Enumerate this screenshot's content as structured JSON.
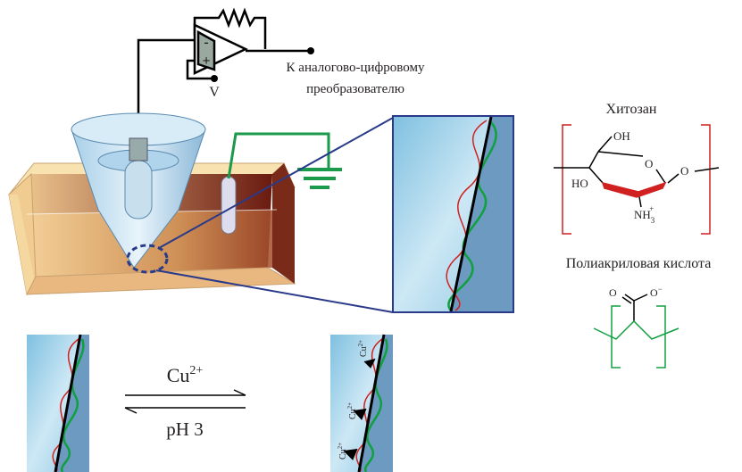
{
  "circuit": {
    "voltage": "V",
    "adc_line1": "К аналогово-цифровому",
    "adc_line2": "преобразователю",
    "minus": "-",
    "plus": "+"
  },
  "chitosan": {
    "title": "Хитозан",
    "oh": "OH",
    "ring_o": "O",
    "link_o": "O",
    "ho": "HO",
    "nh": {
      "base": "NH",
      "sub": "3",
      "sup": "+"
    }
  },
  "polyacrylic": {
    "title": "Полиакриловая кислота",
    "o": "O",
    "o_minus": {
      "base": "O",
      "sup": "−"
    }
  },
  "reaction": {
    "forward": {
      "base": "Cu",
      "sup": "2+"
    },
    "backward": "pH 3"
  },
  "bound_ions": [
    {
      "base": "Cu",
      "sup": "2+"
    },
    {
      "base": "Cu",
      "sup": "2+"
    },
    {
      "base": "Cu",
      "sup": "2+"
    }
  ]
}
